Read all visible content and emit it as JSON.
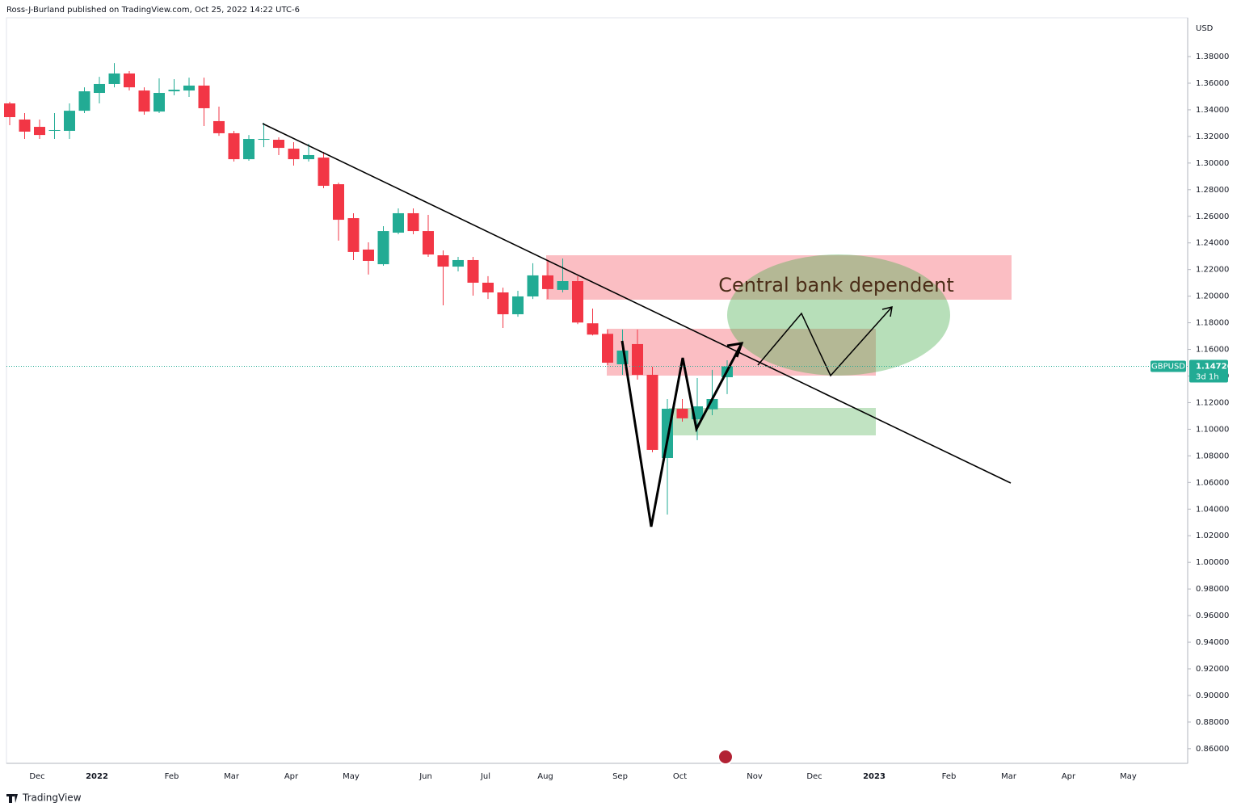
{
  "header": "Ross-J-Burland published on TradingView.com, Oct 25, 2022 14:22 UTC-6",
  "footer": "TradingView",
  "chart_data": {
    "type": "candlestick",
    "symbol": "GBPUSD",
    "currency": "USD",
    "countdown": "3d 1h",
    "last_price": {
      "value": 1.14726,
      "label": "1.14726"
    },
    "annotation": "Central bank dependent",
    "up_color": "#22ab94",
    "down_color": "#f23645",
    "grid": false,
    "categories": [
      null,
      null,
      "Dec",
      null,
      null,
      null,
      "2022",
      null,
      null,
      null,
      null,
      "Feb",
      null,
      null,
      null,
      "Mar",
      null,
      null,
      null,
      "Apr",
      null,
      null,
      null,
      "May",
      null,
      null,
      null,
      null,
      "Jun",
      null,
      null,
      null,
      "Jul",
      null,
      null,
      null,
      "Aug",
      null,
      null,
      null,
      null,
      "Sep",
      null,
      null,
      null,
      "Oct",
      null,
      null,
      null,
      null,
      "Nov",
      null,
      null,
      null,
      "Dec",
      null,
      null,
      null,
      "2023",
      null,
      null,
      null,
      null,
      "Feb",
      null,
      null,
      null,
      "Mar",
      null,
      null,
      null,
      "Apr",
      null,
      null,
      null,
      "May",
      null
    ],
    "open": [
      1.3448,
      1.3327,
      1.3272,
      1.3242,
      1.3242,
      1.3393,
      1.3527,
      1.3594,
      1.3673,
      1.3545,
      1.3387,
      1.3539,
      1.3545,
      1.3582,
      1.3315,
      1.3224,
      1.3029,
      1.3175,
      1.3175,
      1.3108,
      1.3029,
      1.3041,
      1.2841,
      1.2586,
      1.235,
      1.224,
      1.2477,
      1.2623,
      1.2489,
      1.2307,
      1.2222,
      1.2271,
      1.2101,
      1.2028,
      1.1864,
      1.1998,
      1.2156,
      1.2047,
      1.2113,
      1.1796,
      1.1717,
      1.1488,
      1.164,
      1.1409,
      1.0784,
      1.1154,
      1.1075,
      1.115,
      1.1391,
      null,
      null,
      null,
      null,
      null,
      null,
      null,
      null,
      null,
      null,
      null,
      null,
      null,
      null,
      null,
      null,
      null,
      null,
      null,
      null,
      null,
      null,
      null,
      null,
      null,
      null,
      null,
      null
    ],
    "high": [
      1.346,
      1.3375,
      1.3327,
      1.3375,
      1.3448,
      1.3569,
      1.3648,
      1.3751,
      1.3691,
      1.3569,
      1.3636,
      1.363,
      1.3642,
      1.3642,
      1.3424,
      1.3242,
      1.3211,
      1.3302,
      1.3193,
      1.3157,
      1.3145,
      1.3084,
      1.2853,
      1.2623,
      1.2404,
      1.2526,
      1.2659,
      1.2659,
      1.2611,
      1.2344,
      1.2295,
      1.2295,
      1.215,
      1.2064,
      1.204,
      1.2247,
      1.2271,
      1.2283,
      1.215,
      1.1907,
      1.1749,
      1.1749,
      1.1749,
      1.147,
      1.1227,
      1.1227,
      1.1385,
      1.1446,
      1.1518,
      null,
      null,
      null,
      null,
      null,
      null,
      null,
      null,
      null,
      null,
      null,
      null,
      null,
      null,
      null,
      null,
      null,
      null,
      null,
      null,
      null,
      null,
      null,
      null,
      null,
      null,
      null,
      null
    ],
    "low": [
      1.3284,
      1.3181,
      1.3181,
      1.3181,
      1.3181,
      1.3375,
      1.3448,
      1.3569,
      1.3545,
      1.3363,
      1.3375,
      1.3509,
      1.3497,
      1.3278,
      1.3205,
      1.3011,
      1.3017,
      1.312,
      1.306,
      1.2981,
      1.3011,
      1.2811,
      1.2417,
      1.2271,
      1.2162,
      1.2228,
      1.2465,
      1.2465,
      1.2295,
      1.1931,
      1.2186,
      1.2004,
      1.1979,
      1.1761,
      1.1845,
      1.1979,
      1.1979,
      1.2028,
      1.179,
      1.1705,
      1.1482,
      1.1409,
      1.1373,
      1.0827,
      1.0359,
      1.1057,
      1.0918,
      1.1106,
      1.1264,
      null,
      null,
      null,
      null,
      null,
      null,
      null,
      null,
      null,
      null,
      null,
      null,
      null,
      null,
      null,
      null,
      null,
      null,
      null,
      null,
      null,
      null,
      null,
      null,
      null,
      null,
      null,
      null
    ],
    "close": [
      1.3345,
      1.3236,
      1.3211,
      1.3248,
      1.3393,
      1.3539,
      1.3594,
      1.3673,
      1.3569,
      1.3387,
      1.3527,
      1.3551,
      1.3582,
      1.3412,
      1.3224,
      1.3029,
      1.3181,
      1.3181,
      1.3114,
      1.3029,
      1.306,
      1.2829,
      1.2574,
      1.2332,
      1.2265,
      1.2489,
      1.2623,
      1.2489,
      1.2313,
      1.2222,
      1.2271,
      1.2101,
      1.2028,
      1.1864,
      1.1998,
      1.2156,
      1.2053,
      1.2113,
      1.1802,
      1.1711,
      1.15,
      1.1591,
      1.1409,
      1.0845,
      1.1154,
      1.1082,
      1.1172,
      1.1227,
      1.14726,
      null,
      null,
      null,
      null,
      null,
      null,
      null,
      null,
      null,
      null,
      null,
      null,
      null,
      null,
      null,
      null,
      null,
      null,
      null,
      null,
      null,
      null,
      null,
      null,
      null,
      null,
      null,
      null
    ],
    "ylim": [
      0.849,
      1.4225
    ],
    "yticks": [
      {
        "value": 0.86,
        "label": "0.86000"
      },
      {
        "value": 0.88,
        "label": "0.88000"
      },
      {
        "value": 0.9,
        "label": "0.90000"
      },
      {
        "value": 0.92,
        "label": "0.92000"
      },
      {
        "value": 0.94,
        "label": "0.94000"
      },
      {
        "value": 0.96,
        "label": "0.96000"
      },
      {
        "value": 0.98,
        "label": "0.98000"
      },
      {
        "value": 1.0,
        "label": "1.00000"
      },
      {
        "value": 1.02,
        "label": "1.02000"
      },
      {
        "value": 1.04,
        "label": "1.04000"
      },
      {
        "value": 1.06,
        "label": "1.06000"
      },
      {
        "value": 1.08,
        "label": "1.08000"
      },
      {
        "value": 1.1,
        "label": "1.10000"
      },
      {
        "value": 1.12,
        "label": "1.12000"
      },
      {
        "value": 1.14,
        "label": "1.14000"
      },
      {
        "value": 1.16,
        "label": "1.16000"
      },
      {
        "value": 1.18,
        "label": "1.18000"
      },
      {
        "value": 1.2,
        "label": "1.20000"
      },
      {
        "value": 1.22,
        "label": "1.22000"
      },
      {
        "value": 1.24,
        "label": "1.24000"
      },
      {
        "value": 1.26,
        "label": "1.26000"
      },
      {
        "value": 1.28,
        "label": "1.28000"
      },
      {
        "value": 1.3,
        "label": "1.30000"
      },
      {
        "value": 1.32,
        "label": "1.32000"
      },
      {
        "value": 1.34,
        "label": "1.34000"
      },
      {
        "value": 1.36,
        "label": "1.36000"
      },
      {
        "value": 1.38,
        "label": "1.38000"
      }
    ]
  }
}
